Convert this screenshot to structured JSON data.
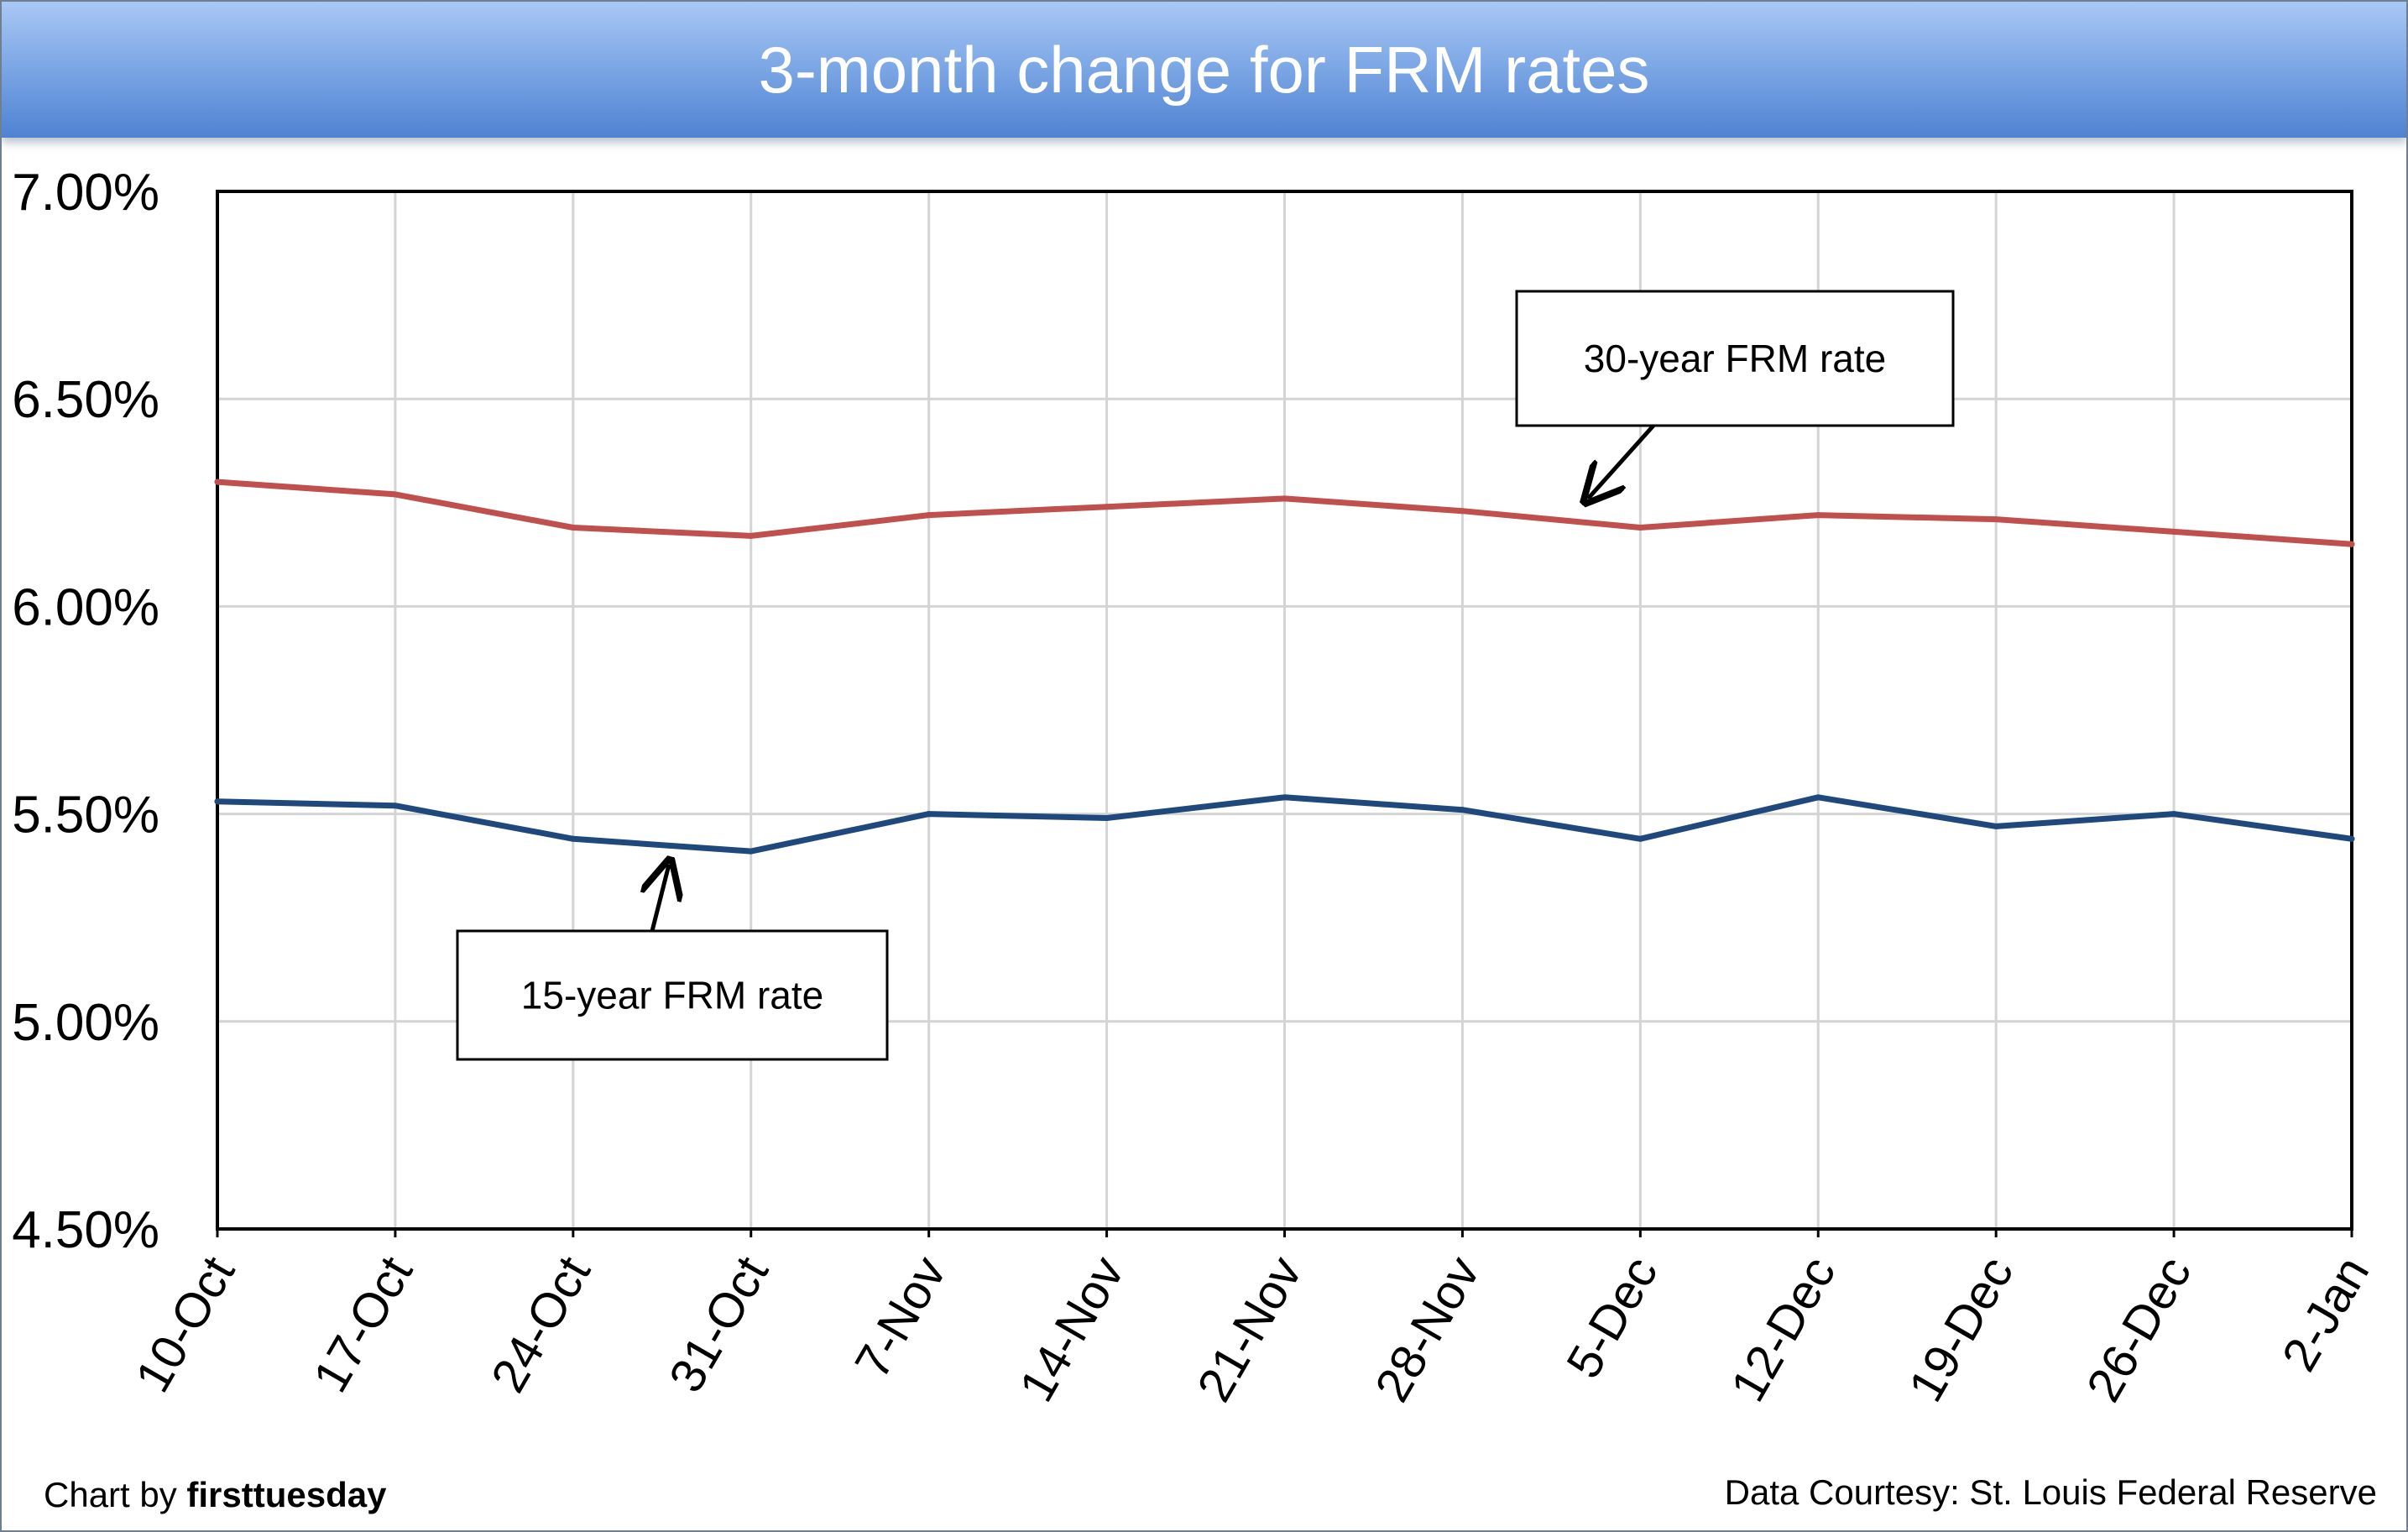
{
  "chart_data": {
    "type": "line",
    "title": "3-month change for FRM rates",
    "categories": [
      "10-Oct",
      "17-Oct",
      "24-Oct",
      "31-Oct",
      "7-Nov",
      "14-Nov",
      "21-Nov",
      "28-Nov",
      "5-Dec",
      "12-Dec",
      "19-Dec",
      "26-Dec",
      "2-Jan"
    ],
    "series": [
      {
        "name": "30-year FRM rate",
        "color": "#c0504d",
        "values": [
          6.3,
          6.27,
          6.19,
          6.17,
          6.22,
          6.24,
          6.26,
          6.23,
          6.19,
          6.22,
          6.21,
          6.18,
          6.15
        ]
      },
      {
        "name": "15-year FRM rate",
        "color": "#1f497d",
        "values": [
          5.53,
          5.52,
          5.44,
          5.41,
          5.5,
          5.49,
          5.54,
          5.51,
          5.44,
          5.54,
          5.47,
          5.5,
          5.44
        ]
      }
    ],
    "ylim": [
      4.5,
      7.0
    ],
    "yticks": [
      "7.00%",
      "6.50%",
      "6.00%",
      "5.50%",
      "5.00%",
      "4.50%"
    ],
    "grid": true,
    "legend": "callouts"
  },
  "footer": {
    "credit_prefix": "Chart by ",
    "credit_brand": "firsttuesday",
    "source": "Data Courtesy: St. Louis Federal Reserve"
  }
}
